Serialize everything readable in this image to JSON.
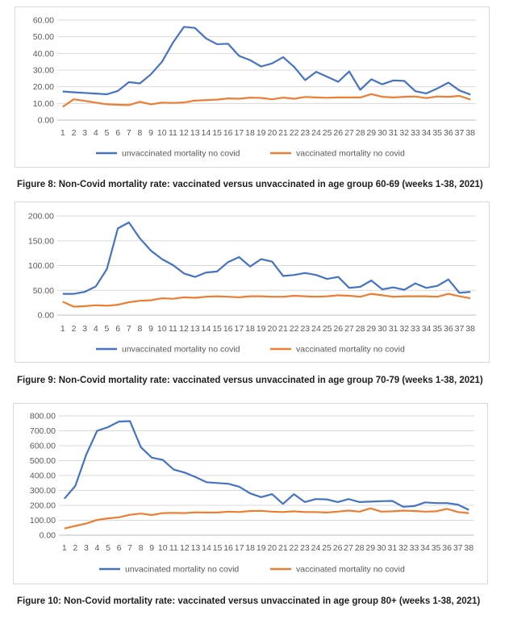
{
  "chart_data": [
    {
      "type": "line",
      "x": [
        1,
        2,
        3,
        4,
        5,
        6,
        7,
        8,
        9,
        10,
        11,
        12,
        13,
        14,
        15,
        16,
        17,
        18,
        19,
        20,
        21,
        22,
        23,
        24,
        25,
        26,
        27,
        28,
        29,
        30,
        31,
        32,
        33,
        34,
        35,
        36,
        37,
        38
      ],
      "y_ticks": [
        "0.00",
        "10.00",
        "20.00",
        "30.00",
        "40.00",
        "50.00",
        "60.00"
      ],
      "ylim": [
        0,
        60
      ],
      "series": [
        {
          "name": "unvaccinated mortality no covid",
          "color": "#4472c4",
          "values": [
            17.2,
            16.7,
            16.3,
            15.9,
            15.5,
            17.5,
            22.8,
            22.0,
            27.5,
            35.0,
            46.5,
            56.0,
            55.3,
            49.0,
            45.6,
            45.8,
            38.5,
            36.0,
            32.2,
            34.0,
            37.8,
            32.0,
            24.0,
            29.0,
            26.0,
            23.0,
            29.2,
            18.2,
            24.5,
            21.5,
            23.8,
            23.5,
            17.3,
            16.0,
            19.0,
            22.5,
            17.8,
            15.3
          ]
        },
        {
          "name": "vaccinated mortality no covid",
          "color": "#ed7d31",
          "values": [
            8.0,
            12.5,
            11.5,
            10.5,
            9.5,
            9.2,
            9.0,
            11.0,
            9.5,
            10.5,
            10.3,
            10.6,
            11.7,
            12.0,
            12.3,
            13.0,
            12.8,
            13.5,
            13.3,
            12.5,
            13.5,
            12.8,
            13.9,
            13.6,
            13.4,
            13.6,
            13.6,
            13.6,
            15.6,
            14.0,
            13.6,
            14.0,
            14.2,
            13.2,
            14.2,
            14.0,
            14.5,
            12.4
          ]
        }
      ]
    },
    {
      "type": "line",
      "x": [
        1,
        2,
        3,
        4,
        5,
        6,
        7,
        8,
        9,
        10,
        11,
        12,
        13,
        14,
        15,
        16,
        17,
        18,
        19,
        20,
        21,
        22,
        23,
        24,
        25,
        26,
        27,
        28,
        29,
        30,
        31,
        32,
        33,
        34,
        35,
        36,
        37,
        38
      ],
      "y_ticks": [
        "0.00",
        "50.00",
        "100.00",
        "150.00",
        "200.00"
      ],
      "ylim": [
        0,
        200
      ],
      "series": [
        {
          "name": "unvaccinated mortality no covid",
          "color": "#4472c4",
          "values": [
            43,
            43,
            47,
            58,
            93,
            175,
            187,
            155,
            130,
            113,
            101,
            84,
            77,
            86,
            88,
            107,
            117,
            98,
            113,
            108,
            79,
            81,
            85,
            81,
            73,
            77,
            55,
            57,
            70,
            52,
            56,
            51,
            64,
            55,
            59,
            72,
            45,
            47
          ]
        },
        {
          "name": "vaccinated mortality no covid",
          "color": "#ed7d31",
          "values": [
            27,
            17,
            18,
            20,
            19,
            21,
            26,
            29,
            30,
            34,
            33,
            36,
            35,
            37,
            38,
            37,
            36,
            38,
            38,
            37,
            37,
            39,
            38,
            37,
            38,
            40,
            39,
            37,
            43,
            40,
            37,
            38,
            38,
            38,
            37,
            43,
            38,
            34
          ]
        }
      ]
    },
    {
      "type": "line",
      "x": [
        1,
        2,
        3,
        4,
        5,
        6,
        7,
        8,
        9,
        10,
        11,
        12,
        13,
        14,
        15,
        16,
        17,
        18,
        19,
        20,
        21,
        22,
        23,
        24,
        25,
        26,
        27,
        28,
        29,
        30,
        31,
        32,
        33,
        34,
        35,
        36,
        37,
        38
      ],
      "y_ticks": [
        "0.00",
        "100.00",
        "200.00",
        "300.00",
        "400.00",
        "500.00",
        "600.00",
        "700.00",
        "800.00"
      ],
      "ylim": [
        0,
        800
      ],
      "series": [
        {
          "name": "unvacinated mortality no covid",
          "color": "#4472c4",
          "values": [
            245,
            330,
            540,
            700,
            725,
            762,
            765,
            590,
            520,
            505,
            440,
            420,
            390,
            355,
            350,
            345,
            325,
            280,
            255,
            275,
            210,
            275,
            222,
            242,
            240,
            222,
            242,
            222,
            225,
            228,
            230,
            190,
            195,
            220,
            215,
            215,
            205,
            170
          ]
        },
        {
          "name": "vaccinated mortality no covid",
          "color": "#ed7d31",
          "values": [
            45,
            62,
            78,
            102,
            113,
            120,
            137,
            145,
            135,
            148,
            150,
            148,
            153,
            152,
            152,
            158,
            155,
            162,
            163,
            158,
            155,
            160,
            155,
            155,
            152,
            158,
            165,
            158,
            180,
            158,
            160,
            165,
            162,
            158,
            160,
            177,
            155,
            148
          ]
        }
      ]
    }
  ],
  "captions": [
    "Figure 8: Non-Covid mortality rate: vaccinated versus unvaccinated in age group 60-69 (weeks 1-38, 2021)",
    "Figure 9: Non-Covid mortality rate: vaccinated versus unvaccinated in age group 70-79 (weeks 1-38, 2021)",
    "Figure 10: Non-Covid mortality rate: vaccinated versus unvaccinated in age group 80+ (weeks 1-38, 2021)"
  ]
}
